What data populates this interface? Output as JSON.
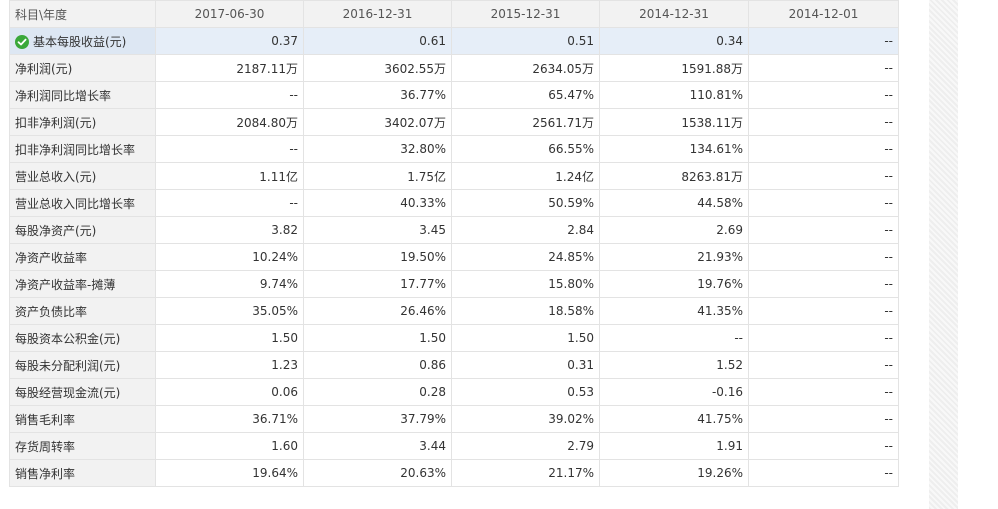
{
  "table": {
    "header": [
      "科目\\年度",
      "2017-06-30",
      "2016-12-31",
      "2015-12-31",
      "2014-12-31",
      "2014-12-01"
    ],
    "rows": [
      {
        "label": "基本每股收益(元)",
        "values": [
          "0.37",
          "0.61",
          "0.51",
          "0.34",
          "--"
        ],
        "selected": true,
        "icon": "check-circle-icon"
      },
      {
        "label": "净利润(元)",
        "values": [
          "2187.11万",
          "3602.55万",
          "2634.05万",
          "1591.88万",
          "--"
        ]
      },
      {
        "label": "净利润同比增长率",
        "values": [
          "--",
          "36.77%",
          "65.47%",
          "110.81%",
          "--"
        ]
      },
      {
        "label": "扣非净利润(元)",
        "values": [
          "2084.80万",
          "3402.07万",
          "2561.71万",
          "1538.11万",
          "--"
        ]
      },
      {
        "label": "扣非净利润同比增长率",
        "values": [
          "--",
          "32.80%",
          "66.55%",
          "134.61%",
          "--"
        ]
      },
      {
        "label": "营业总收入(元)",
        "values": [
          "1.11亿",
          "1.75亿",
          "1.24亿",
          "8263.81万",
          "--"
        ]
      },
      {
        "label": "营业总收入同比增长率",
        "values": [
          "--",
          "40.33%",
          "50.59%",
          "44.58%",
          "--"
        ]
      },
      {
        "label": "每股净资产(元)",
        "values": [
          "3.82",
          "3.45",
          "2.84",
          "2.69",
          "--"
        ]
      },
      {
        "label": "净资产收益率",
        "values": [
          "10.24%",
          "19.50%",
          "24.85%",
          "21.93%",
          "--"
        ]
      },
      {
        "label": "净资产收益率-摊薄",
        "values": [
          "9.74%",
          "17.77%",
          "15.80%",
          "19.76%",
          "--"
        ]
      },
      {
        "label": "资产负债比率",
        "values": [
          "35.05%",
          "26.46%",
          "18.58%",
          "41.35%",
          "--"
        ]
      },
      {
        "label": "每股资本公积金(元)",
        "values": [
          "1.50",
          "1.50",
          "1.50",
          "--",
          "--"
        ]
      },
      {
        "label": "每股未分配利润(元)",
        "values": [
          "1.23",
          "0.86",
          "0.31",
          "1.52",
          "--"
        ]
      },
      {
        "label": "每股经营现金流(元)",
        "values": [
          "0.06",
          "0.28",
          "0.53",
          "-0.16",
          "--"
        ]
      },
      {
        "label": "销售毛利率",
        "values": [
          "36.71%",
          "37.79%",
          "39.02%",
          "41.75%",
          "--"
        ]
      },
      {
        "label": "存货周转率",
        "values": [
          "1.60",
          "3.44",
          "2.79",
          "1.91",
          "--"
        ]
      },
      {
        "label": "销售净利率",
        "values": [
          "19.64%",
          "20.63%",
          "21.17%",
          "19.26%",
          "--"
        ]
      }
    ]
  }
}
